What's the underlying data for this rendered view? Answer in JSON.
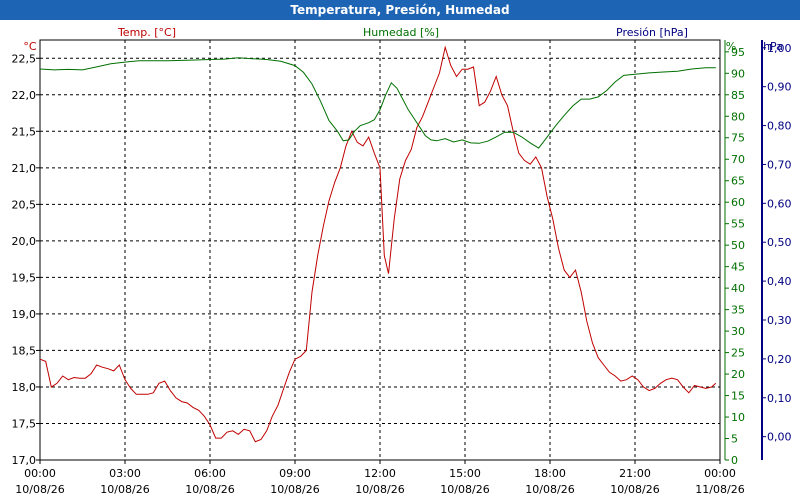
{
  "window": {
    "title": "Temperatura, Presión, Humedad"
  },
  "colors": {
    "temperature": "#c00000",
    "humidity": "#007000",
    "pressure": "#000080",
    "title_bar": "#1e64b4",
    "grid": "#000000"
  },
  "chart_data": {
    "type": "line",
    "title": "Temperatura, Presión, Humedad",
    "grid": true,
    "x_axis": {
      "range": [
        "2026-08-10 00:00",
        "2026-08-11 00:00"
      ],
      "ticks": [
        {
          "time": "00:00",
          "date": "10/08/26"
        },
        {
          "time": "03:00",
          "date": "10/08/26"
        },
        {
          "time": "06:00",
          "date": "10/08/26"
        },
        {
          "time": "09:00",
          "date": "10/08/26"
        },
        {
          "time": "12:00",
          "date": "10/08/26"
        },
        {
          "time": "15:00",
          "date": "10/08/26"
        },
        {
          "time": "18:00",
          "date": "10/08/26"
        },
        {
          "time": "21:00",
          "date": "10/08/26"
        },
        {
          "time": "00:00",
          "date": "11/08/26"
        }
      ]
    },
    "y_axes": {
      "temperature": {
        "unit": "°C",
        "label": "Temp. [°C]",
        "range": [
          17.0,
          22.75
        ],
        "ticks": [
          "17,0",
          "17,5",
          "18,0",
          "18,5",
          "19,0",
          "19,5",
          "20,0",
          "20,5",
          "21,0",
          "21,5",
          "22,0",
          "22,5"
        ]
      },
      "humidity": {
        "unit": "%",
        "label": "Humedad [%]",
        "range": [
          0,
          97.75
        ],
        "ticks": [
          "0",
          "5",
          "10",
          "15",
          "20",
          "25",
          "30",
          "35",
          "40",
          "45",
          "50",
          "55",
          "60",
          "65",
          "70",
          "75",
          "80",
          "85",
          "90",
          "95"
        ]
      },
      "pressure": {
        "unit": "hPa",
        "label": "Presión [hPa]",
        "range": [
          -0.06,
          1.02
        ],
        "ticks": [
          "0,00",
          "0,10",
          "0,20",
          "0,30",
          "0,40",
          "0,50",
          "0,60",
          "0,70",
          "0,80",
          "0,90",
          "1,00"
        ]
      }
    },
    "series": [
      {
        "name": "Temp. [°C]",
        "axis": "temperature",
        "points": [
          [
            0.0,
            18.38
          ],
          [
            0.2,
            18.35
          ],
          [
            0.4,
            18.0
          ],
          [
            0.6,
            18.05
          ],
          [
            0.8,
            18.15
          ],
          [
            1.0,
            18.1
          ],
          [
            1.2,
            18.13
          ],
          [
            1.4,
            18.12
          ],
          [
            1.6,
            18.12
          ],
          [
            1.8,
            18.18
          ],
          [
            2.0,
            18.3
          ],
          [
            2.2,
            18.27
          ],
          [
            2.4,
            18.25
          ],
          [
            2.6,
            18.22
          ],
          [
            2.8,
            18.3
          ],
          [
            3.0,
            18.1
          ],
          [
            3.2,
            17.98
          ],
          [
            3.4,
            17.9
          ],
          [
            3.6,
            17.9
          ],
          [
            3.8,
            17.9
          ],
          [
            4.0,
            17.92
          ],
          [
            4.2,
            18.05
          ],
          [
            4.4,
            18.08
          ],
          [
            4.6,
            17.95
          ],
          [
            4.8,
            17.85
          ],
          [
            5.0,
            17.8
          ],
          [
            5.2,
            17.78
          ],
          [
            5.4,
            17.72
          ],
          [
            5.6,
            17.68
          ],
          [
            5.8,
            17.6
          ],
          [
            6.0,
            17.48
          ],
          [
            6.2,
            17.3
          ],
          [
            6.4,
            17.3
          ],
          [
            6.6,
            17.38
          ],
          [
            6.8,
            17.4
          ],
          [
            7.0,
            17.35
          ],
          [
            7.2,
            17.42
          ],
          [
            7.4,
            17.4
          ],
          [
            7.6,
            17.25
          ],
          [
            7.8,
            17.28
          ],
          [
            8.0,
            17.4
          ],
          [
            8.2,
            17.6
          ],
          [
            8.4,
            17.75
          ],
          [
            8.6,
            17.98
          ],
          [
            8.8,
            18.2
          ],
          [
            9.0,
            18.38
          ],
          [
            9.2,
            18.42
          ],
          [
            9.4,
            18.5
          ],
          [
            9.6,
            19.3
          ],
          [
            9.8,
            19.8
          ],
          [
            10.0,
            20.2
          ],
          [
            10.2,
            20.55
          ],
          [
            10.4,
            20.8
          ],
          [
            10.6,
            21.0
          ],
          [
            10.8,
            21.3
          ],
          [
            11.0,
            21.5
          ],
          [
            11.2,
            21.35
          ],
          [
            11.4,
            21.3
          ],
          [
            11.6,
            21.42
          ],
          [
            11.8,
            21.2
          ],
          [
            12.0,
            21.0
          ],
          [
            12.15,
            19.8
          ],
          [
            12.3,
            19.55
          ],
          [
            12.5,
            20.3
          ],
          [
            12.7,
            20.85
          ],
          [
            12.9,
            21.1
          ],
          [
            13.1,
            21.25
          ],
          [
            13.3,
            21.55
          ],
          [
            13.5,
            21.7
          ],
          [
            13.7,
            21.9
          ],
          [
            13.9,
            22.1
          ],
          [
            14.1,
            22.3
          ],
          [
            14.3,
            22.65
          ],
          [
            14.5,
            22.4
          ],
          [
            14.7,
            22.25
          ],
          [
            14.9,
            22.35
          ],
          [
            15.1,
            22.35
          ],
          [
            15.3,
            22.38
          ],
          [
            15.5,
            21.85
          ],
          [
            15.7,
            21.9
          ],
          [
            15.9,
            22.05
          ],
          [
            16.1,
            22.25
          ],
          [
            16.3,
            22.0
          ],
          [
            16.5,
            21.85
          ],
          [
            16.7,
            21.5
          ],
          [
            16.9,
            21.2
          ],
          [
            17.1,
            21.1
          ],
          [
            17.3,
            21.05
          ],
          [
            17.5,
            21.15
          ],
          [
            17.7,
            21.0
          ],
          [
            17.9,
            20.6
          ],
          [
            18.1,
            20.3
          ],
          [
            18.3,
            19.9
          ],
          [
            18.5,
            19.6
          ],
          [
            18.7,
            19.5
          ],
          [
            18.9,
            19.6
          ],
          [
            19.1,
            19.3
          ],
          [
            19.3,
            18.9
          ],
          [
            19.5,
            18.6
          ],
          [
            19.7,
            18.4
          ],
          [
            19.9,
            18.3
          ],
          [
            20.1,
            18.2
          ],
          [
            20.3,
            18.15
          ],
          [
            20.5,
            18.08
          ],
          [
            20.7,
            18.1
          ],
          [
            20.9,
            18.15
          ],
          [
            21.1,
            18.1
          ],
          [
            21.3,
            18.0
          ],
          [
            21.5,
            17.95
          ],
          [
            21.7,
            17.98
          ],
          [
            21.9,
            18.05
          ],
          [
            22.1,
            18.1
          ],
          [
            22.3,
            18.12
          ],
          [
            22.5,
            18.1
          ],
          [
            22.7,
            18.0
          ],
          [
            22.9,
            17.92
          ],
          [
            23.1,
            18.02
          ],
          [
            23.3,
            18.0
          ],
          [
            23.5,
            17.98
          ],
          [
            23.7,
            18.0
          ],
          [
            23.85,
            18.05
          ]
        ]
      },
      {
        "name": "Humedad [%]",
        "axis": "humidity",
        "points": [
          [
            0.0,
            91.0
          ],
          [
            0.5,
            90.8
          ],
          [
            1.0,
            90.9
          ],
          [
            1.5,
            90.8
          ],
          [
            2.0,
            91.5
          ],
          [
            2.5,
            92.2
          ],
          [
            3.0,
            92.6
          ],
          [
            3.5,
            92.9
          ],
          [
            4.0,
            92.9
          ],
          [
            4.5,
            92.9
          ],
          [
            5.0,
            93.0
          ],
          [
            5.5,
            93.1
          ],
          [
            6.0,
            93.2
          ],
          [
            6.5,
            93.3
          ],
          [
            7.0,
            93.6
          ],
          [
            7.5,
            93.4
          ],
          [
            8.0,
            93.2
          ],
          [
            8.5,
            92.8
          ],
          [
            9.0,
            91.8
          ],
          [
            9.3,
            90.2
          ],
          [
            9.6,
            87.5
          ],
          [
            9.9,
            83.5
          ],
          [
            10.2,
            79.0
          ],
          [
            10.5,
            76.5
          ],
          [
            10.7,
            74.3
          ],
          [
            10.9,
            74.5
          ],
          [
            11.1,
            76.5
          ],
          [
            11.3,
            77.8
          ],
          [
            11.6,
            78.5
          ],
          [
            11.8,
            79.2
          ],
          [
            12.0,
            81.5
          ],
          [
            12.2,
            85.0
          ],
          [
            12.4,
            87.8
          ],
          [
            12.6,
            86.5
          ],
          [
            12.8,
            84.0
          ],
          [
            13.0,
            81.5
          ],
          [
            13.2,
            79.5
          ],
          [
            13.4,
            77.5
          ],
          [
            13.6,
            75.5
          ],
          [
            13.8,
            74.5
          ],
          [
            14.0,
            74.3
          ],
          [
            14.3,
            74.8
          ],
          [
            14.6,
            74.0
          ],
          [
            14.9,
            74.5
          ],
          [
            15.2,
            73.8
          ],
          [
            15.5,
            73.7
          ],
          [
            15.8,
            74.2
          ],
          [
            16.1,
            75.2
          ],
          [
            16.4,
            76.3
          ],
          [
            16.7,
            76.3
          ],
          [
            17.0,
            75.2
          ],
          [
            17.3,
            73.8
          ],
          [
            17.6,
            72.6
          ],
          [
            17.9,
            75.2
          ],
          [
            18.2,
            77.8
          ],
          [
            18.5,
            80.2
          ],
          [
            18.8,
            82.4
          ],
          [
            19.1,
            84.0
          ],
          [
            19.4,
            84.0
          ],
          [
            19.7,
            84.5
          ],
          [
            20.0,
            86.0
          ],
          [
            20.3,
            88.0
          ],
          [
            20.6,
            89.5
          ],
          [
            21.0,
            89.8
          ],
          [
            21.5,
            90.1
          ],
          [
            22.0,
            90.3
          ],
          [
            22.5,
            90.5
          ],
          [
            23.0,
            91.0
          ],
          [
            23.5,
            91.3
          ],
          [
            23.85,
            91.3
          ]
        ]
      }
    ]
  }
}
